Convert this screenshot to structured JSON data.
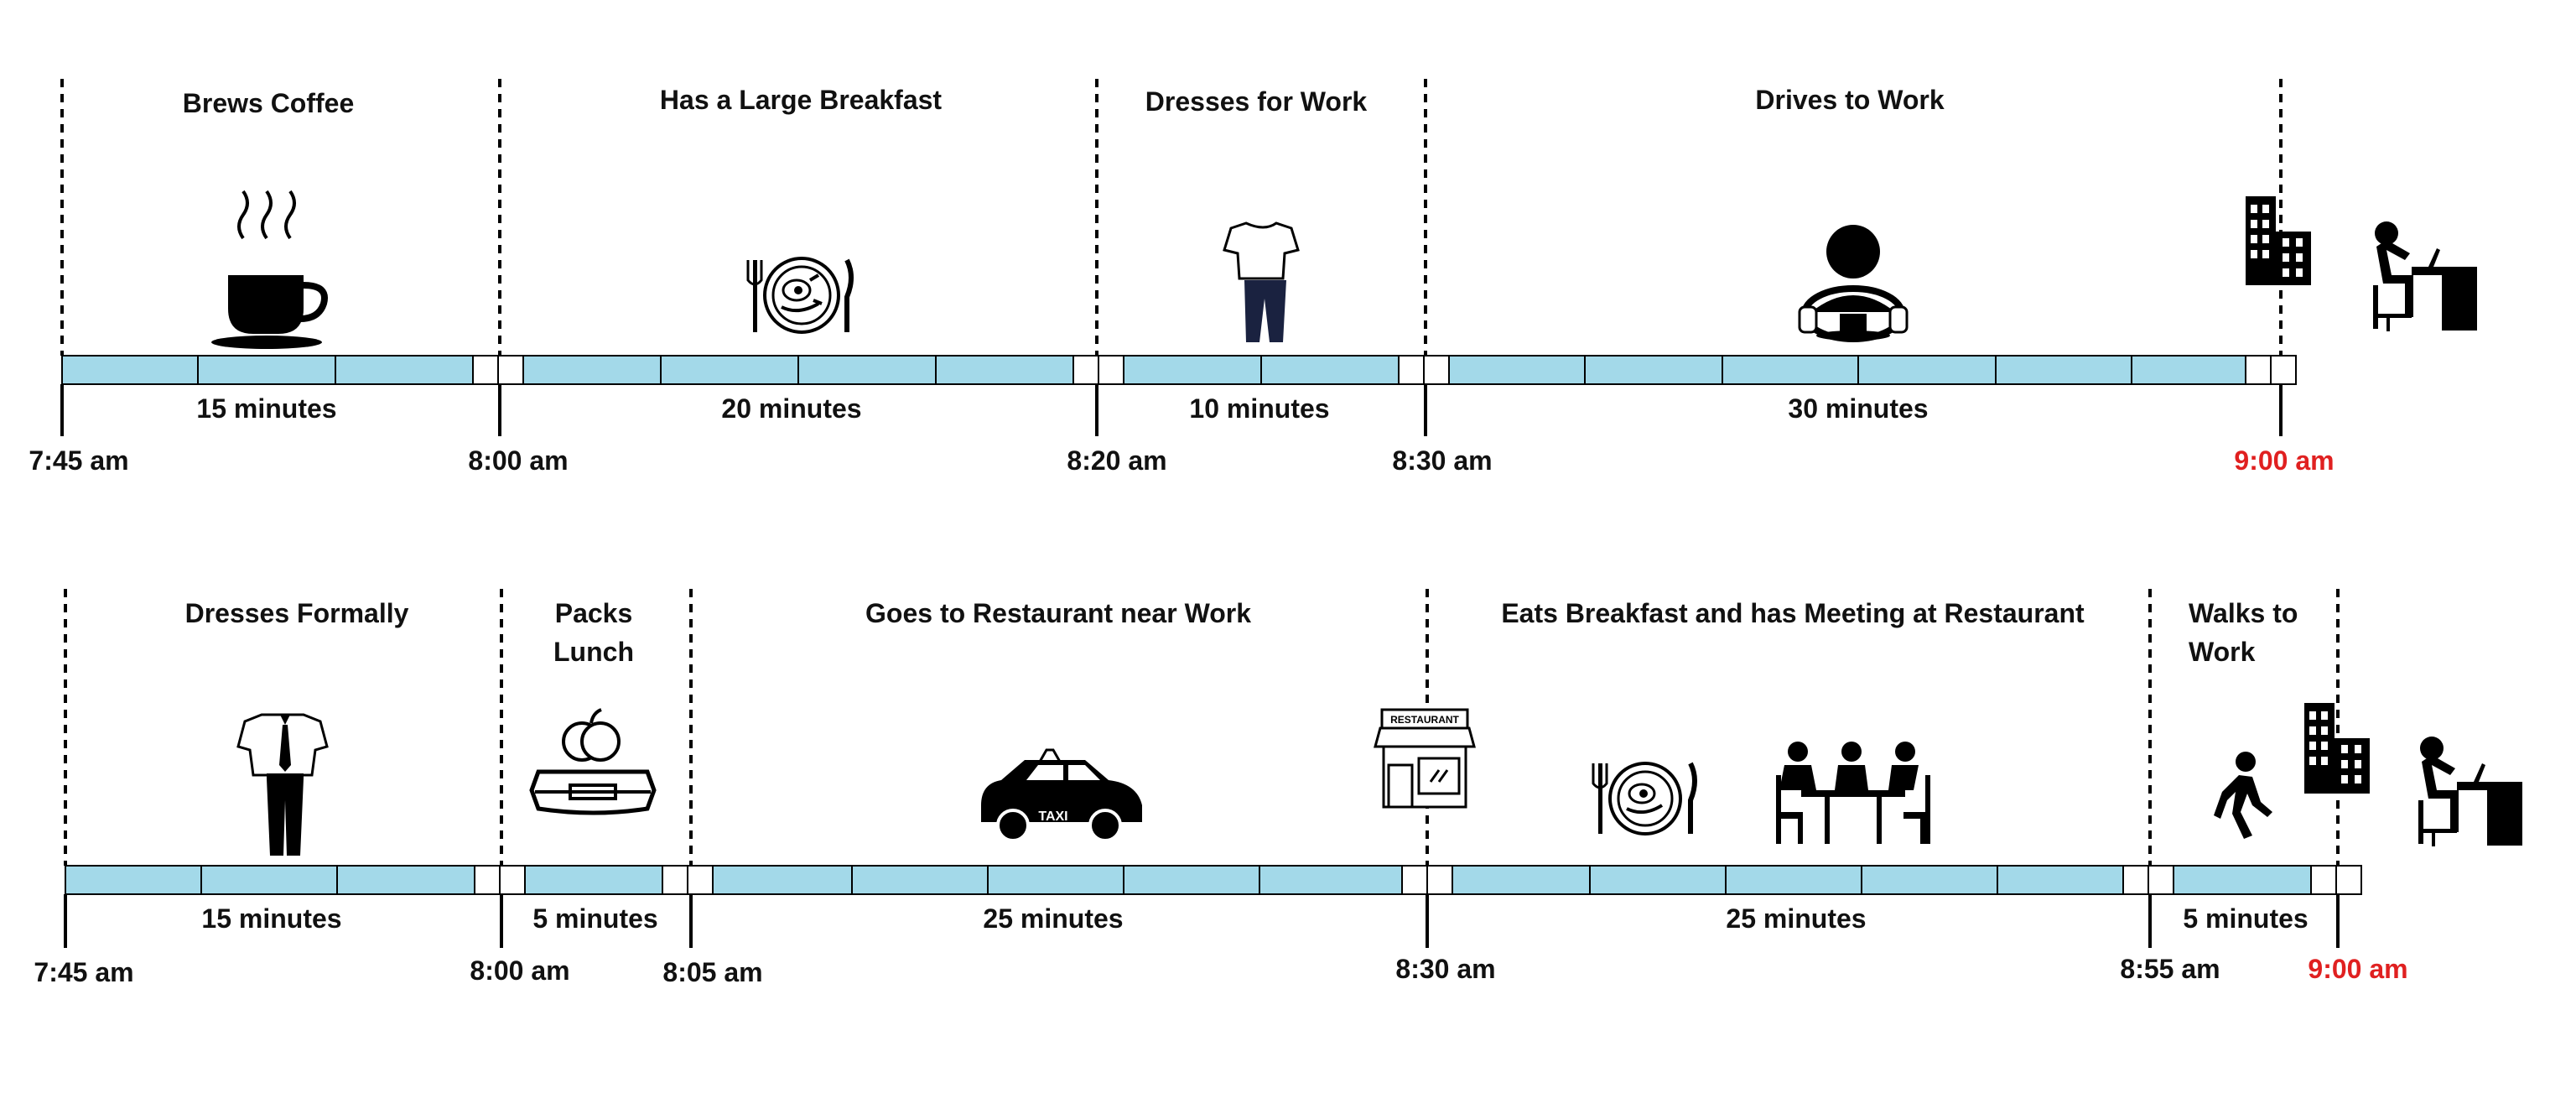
{
  "colors": {
    "bar_fill": "#a3d9e9",
    "bar_stroke": "#000000",
    "gap_fill": "#ffffff",
    "highlight": "#e02020",
    "text": "#111111"
  },
  "timeline1": {
    "activities": [
      {
        "label": "Brews Coffee",
        "duration": "15 minutes",
        "icon": "coffee-cup-icon"
      },
      {
        "label": "Has a Large Breakfast",
        "duration": "20 minutes",
        "icon": "plate-breakfast-icon"
      },
      {
        "label": "Dresses for Work",
        "duration": "10 minutes",
        "icon": "tshirt-pants-icon"
      },
      {
        "label": "Drives to Work",
        "duration": "30 minutes",
        "icon": "driver-steering-wheel-icon"
      }
    ],
    "times": [
      "7:45 am",
      "8:00 am",
      "8:20 am",
      "8:30 am",
      "9:00 am"
    ],
    "end_icons": [
      "office-building-icon",
      "person-at-desk-icon"
    ]
  },
  "timeline2": {
    "activities": [
      {
        "label": "Dresses Formally",
        "duration": "15 minutes",
        "icon": "formal-suit-icon"
      },
      {
        "label_lines": [
          "Packs",
          "Lunch"
        ],
        "duration": "5 minutes",
        "icon": "lunchbox-apple-icon"
      },
      {
        "label": "Goes to Restaurant near Work",
        "duration": "25 minutes",
        "icon": "taxi-icon"
      },
      {
        "label": "Eats Breakfast and has Meeting at Restaurant",
        "duration": "25 minutes",
        "icon": "meeting-table-icon"
      },
      {
        "label_lines": [
          "Walks to",
          "Work"
        ],
        "duration": "5 minutes",
        "icon": "walking-person-icon"
      }
    ],
    "times": [
      "7:45 am",
      "8:00 am",
      "8:05 am",
      "8:30 am",
      "8:55 am",
      "9:00 am"
    ],
    "mid_icons": [
      "restaurant-storefront-icon",
      "plate-breakfast-icon"
    ],
    "end_icons": [
      "office-building-icon",
      "person-at-desk-icon"
    ],
    "restaurant_sign": "RESTAURANT"
  }
}
